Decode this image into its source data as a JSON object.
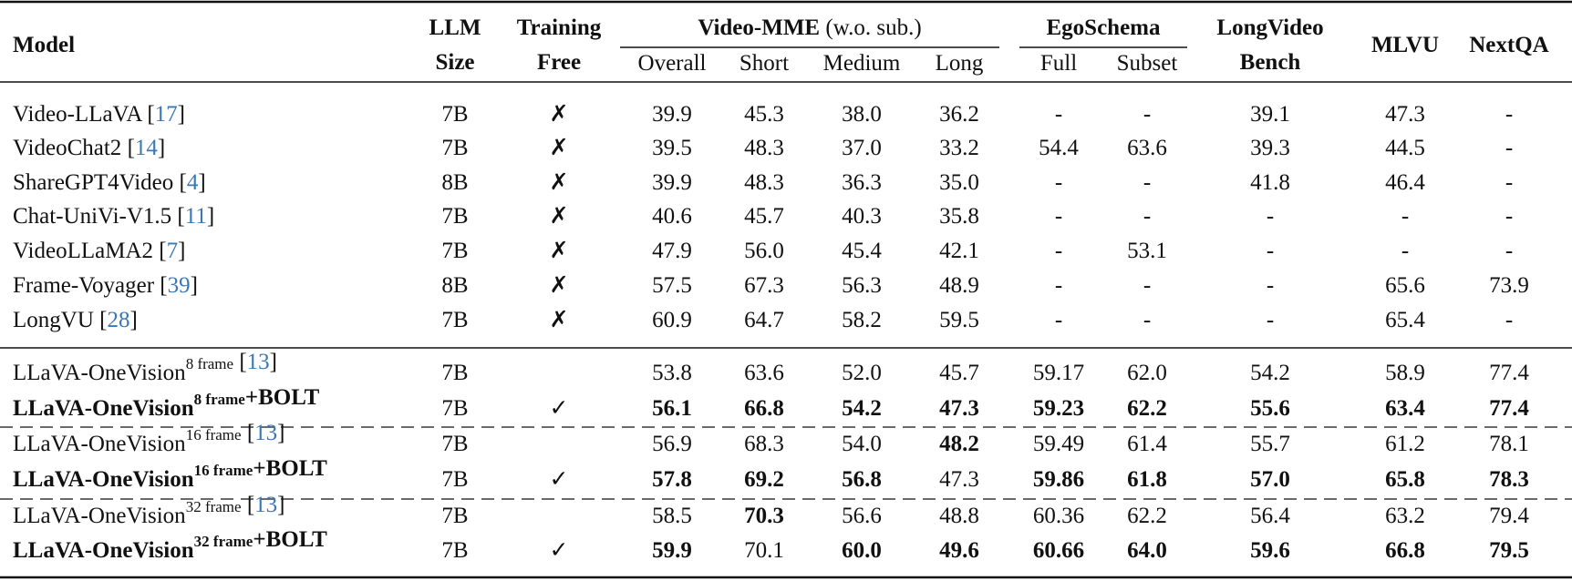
{
  "header": {
    "model": "Model",
    "llm": [
      "LLM",
      "Size"
    ],
    "training": [
      "Training",
      "Free"
    ],
    "vmme_title_bold": "Video-MME",
    "vmme_title_rest": "(w.o. sub.)",
    "ego_title": "EgoSchema",
    "lvb": [
      "LongVideo",
      "Bench"
    ],
    "mlvu": "MLVU",
    "nextqa": "NextQA",
    "sub": [
      "Overall",
      "Short",
      "Medium",
      "Long",
      "Full",
      "Subset"
    ]
  },
  "rows": [
    {
      "model": "Video-LLaVA",
      "ref": "17",
      "size": "7B",
      "tf": "✗",
      "vals": [
        "39.9",
        "45.3",
        "38.0",
        "36.2",
        "-",
        "-",
        "39.1",
        "47.3",
        "-"
      ]
    },
    {
      "model": "VideoChat2",
      "ref": "14",
      "size": "7B",
      "tf": "✗",
      "vals": [
        "39.5",
        "48.3",
        "37.0",
        "33.2",
        "54.4",
        "63.6",
        "39.3",
        "44.5",
        "-"
      ]
    },
    {
      "model": "ShareGPT4Video",
      "ref": "4",
      "size": "8B",
      "tf": "✗",
      "vals": [
        "39.9",
        "48.3",
        "36.3",
        "35.0",
        "-",
        "-",
        "41.8",
        "46.4",
        "-"
      ]
    },
    {
      "model": "Chat-UniVi-V1.5",
      "ref": "11",
      "size": "7B",
      "tf": "✗",
      "vals": [
        "40.6",
        "45.7",
        "40.3",
        "35.8",
        "-",
        "-",
        "-",
        "-",
        "-"
      ]
    },
    {
      "model": "VideoLLaMA2",
      "ref": "7",
      "size": "7B",
      "tf": "✗",
      "vals": [
        "47.9",
        "56.0",
        "45.4",
        "42.1",
        "-",
        "53.1",
        "-",
        "-",
        "-"
      ]
    },
    {
      "model": "Frame-Voyager",
      "ref": "39",
      "size": "8B",
      "tf": "✗",
      "vals": [
        "57.5",
        "67.3",
        "56.3",
        "48.9",
        "-",
        "-",
        "-",
        "65.6",
        "73.9"
      ]
    },
    {
      "model": "LongVU",
      "ref": "28",
      "size": "7B",
      "tf": "✗",
      "vals": [
        "60.9",
        "64.7",
        "58.2",
        "59.5",
        "-",
        "-",
        "-",
        "65.4",
        "-"
      ]
    },
    {
      "model": "LLaVA-OneVision",
      "sup": "8 frame",
      "ref": "13",
      "size": "7B",
      "tf": "",
      "vals": [
        "53.8",
        "63.6",
        "52.0",
        "45.7",
        "59.17",
        "62.0",
        "54.2",
        "58.9",
        "77.4"
      ],
      "bold": []
    },
    {
      "model": "LLaVA-OneVision",
      "sup": "8 frame",
      "suffix": "+BOLT",
      "size": "7B",
      "tf": "✓",
      "rowbold": true,
      "vals": [
        "56.1",
        "66.8",
        "54.2",
        "47.3",
        "59.23",
        "62.2",
        "55.6",
        "63.4",
        "77.4"
      ],
      "bold": [
        0,
        1,
        2,
        3,
        4,
        5,
        6,
        7,
        8
      ]
    },
    {
      "model": "LLaVA-OneVision",
      "sup": "16 frame",
      "ref": "13",
      "size": "7B",
      "tf": "",
      "vals": [
        "56.9",
        "68.3",
        "54.0",
        "48.2",
        "59.49",
        "61.4",
        "55.7",
        "61.2",
        "78.1"
      ],
      "bold": [
        3
      ]
    },
    {
      "model": "LLaVA-OneVision",
      "sup": "16 frame",
      "suffix": "+BOLT",
      "size": "7B",
      "tf": "✓",
      "rowbold": true,
      "vals": [
        "57.8",
        "69.2",
        "56.8",
        "47.3",
        "59.86",
        "61.8",
        "57.0",
        "65.8",
        "78.3"
      ],
      "bold": [
        0,
        1,
        2,
        4,
        5,
        6,
        7,
        8
      ]
    },
    {
      "model": "LLaVA-OneVision",
      "sup": "32 frame",
      "ref": "13",
      "size": "7B",
      "tf": "",
      "vals": [
        "58.5",
        "70.3",
        "56.6",
        "48.8",
        "60.36",
        "62.2",
        "56.4",
        "63.2",
        "79.4"
      ],
      "bold": [
        1
      ]
    },
    {
      "model": "LLaVA-OneVision",
      "sup": "32 frame",
      "suffix": "+BOLT",
      "size": "7B",
      "tf": "✓",
      "rowbold": true,
      "vals": [
        "59.9",
        "70.1",
        "60.0",
        "49.6",
        "60.66",
        "64.0",
        "59.6",
        "66.8",
        "79.5"
      ],
      "bold": [
        0,
        2,
        3,
        4,
        5,
        6,
        7,
        8
      ]
    }
  ]
}
